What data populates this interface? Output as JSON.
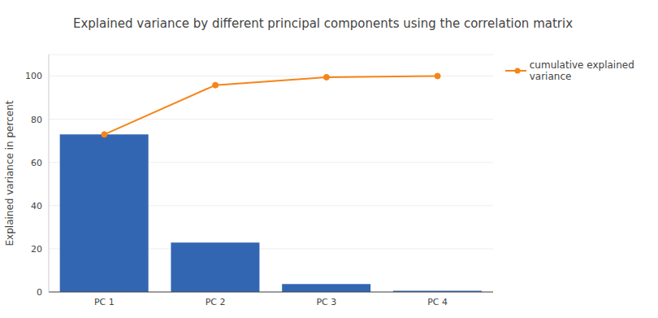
{
  "chart_data": {
    "type": "bar",
    "title": "Explained variance by different principal components using the correlation matrix",
    "y_label": "Explained variance in percent",
    "categories": [
      "PC 1",
      "PC 2",
      "PC 3",
      "PC 4"
    ],
    "series": [
      {
        "type": "bar",
        "color": "#3366b2",
        "values": [
          72.96,
          22.85,
          3.67,
          0.52
        ]
      },
      {
        "name": "cumulative explained variance",
        "type": "line",
        "color": "#f58518",
        "marker": "circle",
        "values": [
          72.96,
          95.81,
          99.48,
          100
        ]
      }
    ],
    "ylim": [
      0,
      110
    ],
    "yticks": [
      0,
      20,
      40,
      60,
      80,
      100
    ],
    "grid": true,
    "legend": "top right"
  }
}
